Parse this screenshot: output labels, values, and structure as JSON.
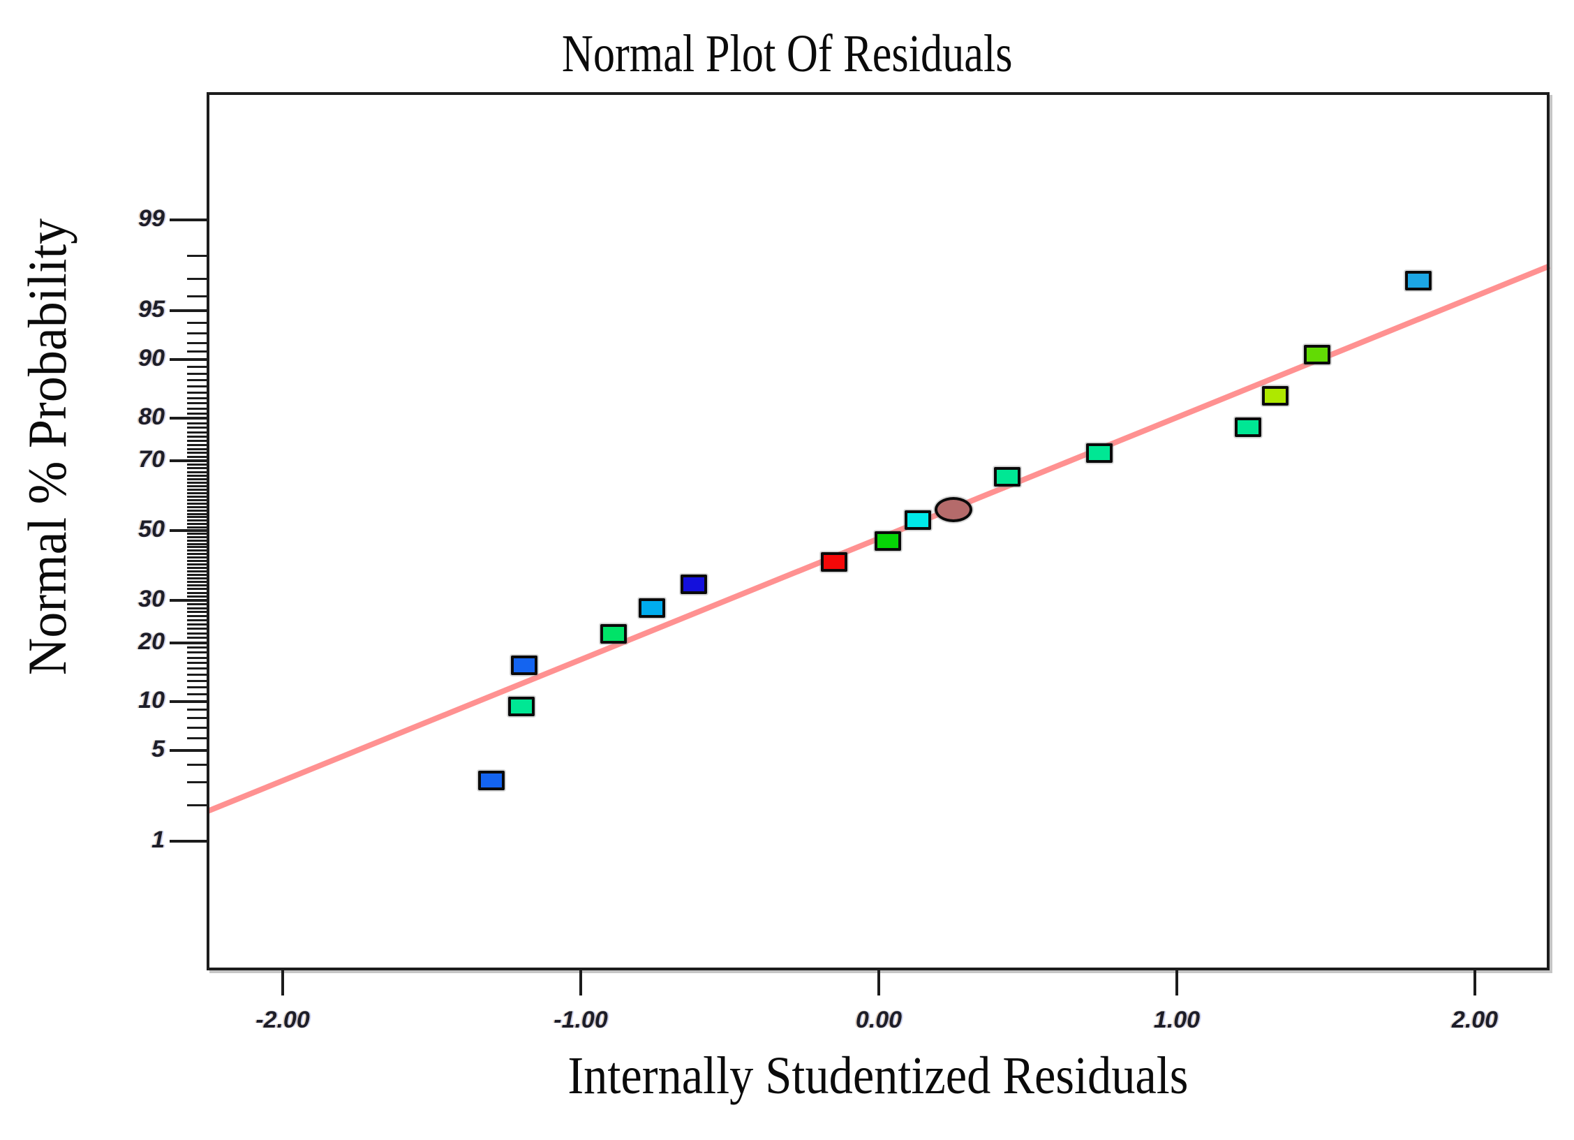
{
  "figure": {
    "title": "Normal Plot Of Residuals",
    "x_axis": {
      "label": "Internally Studentized Residuals",
      "range": [
        -2.25,
        2.25
      ],
      "ticks": [
        {
          "value": -2,
          "label": "-2.00"
        },
        {
          "value": -1,
          "label": "-1.00"
        },
        {
          "value": 0,
          "label": "0.00"
        },
        {
          "value": 1,
          "label": "1.00"
        },
        {
          "value": 2,
          "label": "2.00"
        }
      ]
    },
    "y_axis": {
      "label": "Normal % Probability",
      "scale": "normal-probability",
      "ticks": [
        {
          "value": 1,
          "label": "1"
        },
        {
          "value": 5,
          "label": "5"
        },
        {
          "value": 10,
          "label": "10"
        },
        {
          "value": 20,
          "label": "20"
        },
        {
          "value": 30,
          "label": "30"
        },
        {
          "value": 50,
          "label": "50"
        },
        {
          "value": 70,
          "label": "70"
        },
        {
          "value": 80,
          "label": "80"
        },
        {
          "value": 90,
          "label": "90"
        },
        {
          "value": 95,
          "label": "95"
        },
        {
          "value": 99,
          "label": "99"
        }
      ],
      "minor_ticks_percent": {
        "from": 1,
        "to": 99,
        "step": 1
      }
    }
  },
  "chart_data": {
    "type": "scatter",
    "title": "Normal Plot Of Residuals",
    "xlabel": "Internally Studentized Residuals",
    "ylabel": "Normal % Probability",
    "xlim": [
      -2.25,
      2.25
    ],
    "y_scale": "normal-probability-percent",
    "marker_outline": "#0A0A0A",
    "points": [
      {
        "x": -1.3,
        "p": 3.1,
        "color": "#1464F0",
        "shape": "square"
      },
      {
        "x": -1.2,
        "p": 9.4,
        "color": "#00E794",
        "shape": "square"
      },
      {
        "x": -1.19,
        "p": 15.6,
        "color": "#1464F0",
        "shape": "square"
      },
      {
        "x": -0.89,
        "p": 21.9,
        "color": "#00E368",
        "shape": "square"
      },
      {
        "x": -0.76,
        "p": 28.1,
        "color": "#00ACEE",
        "shape": "square"
      },
      {
        "x": -0.62,
        "p": 34.4,
        "color": "#1410DC",
        "shape": "square"
      },
      {
        "x": -0.15,
        "p": 40.6,
        "color": "#F40808",
        "shape": "square"
      },
      {
        "x": 0.03,
        "p": 46.9,
        "color": "#06D506",
        "shape": "square"
      },
      {
        "x": 0.13,
        "p": 53.1,
        "color": "#00E9E9",
        "shape": "square"
      },
      {
        "x": 0.25,
        "p": 56.2,
        "color": "#B56B6B",
        "shape": "ellipse"
      },
      {
        "x": 0.43,
        "p": 65.6,
        "color": "#00E794",
        "shape": "square"
      },
      {
        "x": 0.74,
        "p": 71.9,
        "color": "#00E794",
        "shape": "square"
      },
      {
        "x": 1.24,
        "p": 78.1,
        "color": "#00E794",
        "shape": "square"
      },
      {
        "x": 1.33,
        "p": 84.4,
        "color": "#AEE800",
        "shape": "square"
      },
      {
        "x": 1.47,
        "p": 90.6,
        "color": "#62DB04",
        "shape": "square"
      },
      {
        "x": 1.81,
        "p": 96.9,
        "color": "#1CA6E4",
        "shape": "square"
      }
    ],
    "trend_line": {
      "x": [
        -2.25,
        2.25
      ],
      "p": [
        1.8,
        97.6
      ],
      "color": "#FF9191"
    }
  }
}
